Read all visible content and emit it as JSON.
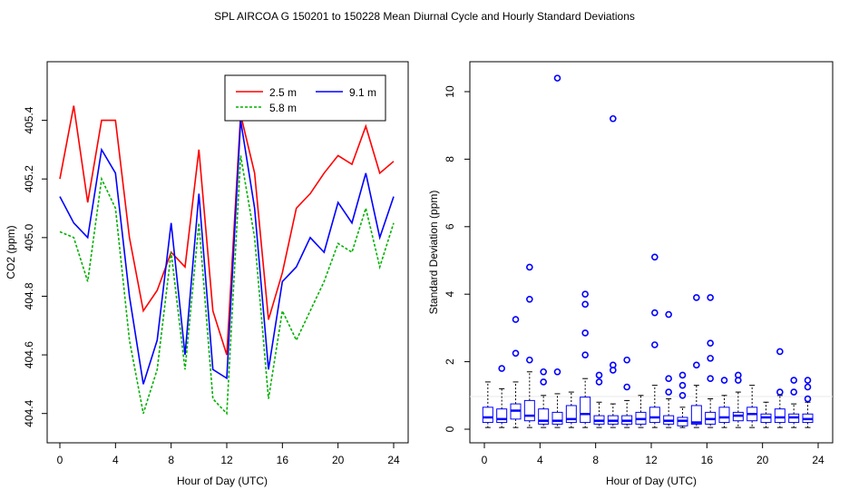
{
  "page": {
    "title": "SPL   AIRCOA G   150201 to 150228   Mean Diurnal Cycle and Hourly Standard Deviations"
  },
  "chart_data": [
    {
      "type": "line",
      "xlabel": "Hour of Day (UTC)",
      "ylabel": "CO2 (ppm)",
      "xlim": [
        0,
        24
      ],
      "ylim": [
        404.3,
        405.6
      ],
      "xticks": [
        "0",
        "4",
        "8",
        "12",
        "16",
        "20",
        "24"
      ],
      "yticks": [
        "404.4",
        "404.6",
        "404.8",
        "405.0",
        "405.2",
        "405.4"
      ],
      "legend_position": "top-right",
      "series": [
        {
          "name": "2.5 m",
          "color": "#ff0000",
          "x": [
            0,
            1,
            2,
            3,
            4,
            5,
            6,
            7,
            8,
            9,
            10,
            11,
            12,
            13,
            14,
            15,
            16,
            17,
            18,
            19,
            20,
            21,
            22,
            23,
            24
          ],
          "y": [
            405.2,
            405.45,
            405.12,
            405.4,
            405.4,
            405.0,
            404.75,
            404.82,
            404.95,
            404.9,
            405.3,
            404.75,
            404.6,
            405.42,
            405.22,
            404.72,
            404.88,
            405.1,
            405.15,
            405.22,
            405.28,
            405.25,
            405.38,
            405.22,
            405.26
          ]
        },
        {
          "name": "9.1 m",
          "color": "#0000ff",
          "x": [
            0,
            1,
            2,
            3,
            4,
            5,
            6,
            7,
            8,
            9,
            10,
            11,
            12,
            13,
            14,
            15,
            16,
            17,
            18,
            19,
            20,
            21,
            22,
            23,
            24
          ],
          "y": [
            405.14,
            405.05,
            405.0,
            405.3,
            405.22,
            404.8,
            404.5,
            404.65,
            405.05,
            404.6,
            405.15,
            404.55,
            404.52,
            405.4,
            405.1,
            404.55,
            404.85,
            404.9,
            405.0,
            404.95,
            405.12,
            405.05,
            405.22,
            405.0,
            405.14
          ]
        },
        {
          "name": "5.8 m",
          "color": "#00b000",
          "x": [
            0,
            1,
            2,
            3,
            4,
            5,
            6,
            7,
            8,
            9,
            10,
            11,
            12,
            13,
            14,
            15,
            16,
            17,
            18,
            19,
            20,
            21,
            22,
            23,
            24
          ],
          "y": [
            405.02,
            405.0,
            404.85,
            405.2,
            405.1,
            404.65,
            404.4,
            404.55,
            404.95,
            404.55,
            405.05,
            404.45,
            404.4,
            405.28,
            405.0,
            404.45,
            404.75,
            404.65,
            404.75,
            404.85,
            404.98,
            404.95,
            405.1,
            404.9,
            405.05
          ]
        }
      ]
    },
    {
      "type": "box",
      "xlabel": "Hour of Day (UTC)",
      "ylabel": "Standard Deviation (ppm)",
      "xlim": [
        0,
        24
      ],
      "ylim": [
        0,
        10.5
      ],
      "xticks": [
        "0",
        "4",
        "8",
        "12",
        "16",
        "20",
        "24"
      ],
      "yticks": [
        "0",
        "2",
        "4",
        "6",
        "8",
        "10"
      ],
      "color": "#0000ff",
      "boxes": [
        {
          "hour": 0.25,
          "min": 0.05,
          "q1": 0.2,
          "median": 0.35,
          "q3": 0.65,
          "max": 1.4
        },
        {
          "hour": 1.25,
          "min": 0.05,
          "q1": 0.2,
          "median": 0.3,
          "q3": 0.6,
          "max": 1.2
        },
        {
          "hour": 2.25,
          "min": 0.05,
          "q1": 0.3,
          "median": 0.55,
          "q3": 0.75,
          "max": 1.4
        },
        {
          "hour": 3.25,
          "min": 0.05,
          "q1": 0.25,
          "median": 0.4,
          "q3": 0.85,
          "max": 1.7
        },
        {
          "hour": 4.25,
          "min": 0.05,
          "q1": 0.15,
          "median": 0.25,
          "q3": 0.6,
          "max": 1.0
        },
        {
          "hour": 5.25,
          "min": 0.05,
          "q1": 0.15,
          "median": 0.25,
          "q3": 0.5,
          "max": 1.05
        },
        {
          "hour": 6.25,
          "min": 0.05,
          "q1": 0.2,
          "median": 0.3,
          "q3": 0.7,
          "max": 1.1
        },
        {
          "hour": 7.25,
          "min": 0.05,
          "q1": 0.2,
          "median": 0.45,
          "q3": 0.95,
          "max": 1.5
        },
        {
          "hour": 8.25,
          "min": 0.05,
          "q1": 0.15,
          "median": 0.25,
          "q3": 0.4,
          "max": 0.8
        },
        {
          "hour": 9.25,
          "min": 0.05,
          "q1": 0.15,
          "median": 0.25,
          "q3": 0.4,
          "max": 0.75
        },
        {
          "hour": 10.25,
          "min": 0.05,
          "q1": 0.15,
          "median": 0.25,
          "q3": 0.4,
          "max": 0.85
        },
        {
          "hour": 11.25,
          "min": 0.05,
          "q1": 0.15,
          "median": 0.3,
          "q3": 0.5,
          "max": 1.0
        },
        {
          "hour": 12.25,
          "min": 0.05,
          "q1": 0.2,
          "median": 0.35,
          "q3": 0.65,
          "max": 1.3
        },
        {
          "hour": 13.25,
          "min": 0.05,
          "q1": 0.15,
          "median": 0.25,
          "q3": 0.4,
          "max": 0.9
        },
        {
          "hour": 14.25,
          "min": 0.05,
          "q1": 0.1,
          "median": 0.25,
          "q3": 0.35,
          "max": 0.65
        },
        {
          "hour": 15.25,
          "min": 0.05,
          "q1": 0.15,
          "median": 0.2,
          "q3": 0.7,
          "max": 1.3
        },
        {
          "hour": 16.25,
          "min": 0.05,
          "q1": 0.15,
          "median": 0.3,
          "q3": 0.5,
          "max": 0.9
        },
        {
          "hour": 17.25,
          "min": 0.05,
          "q1": 0.2,
          "median": 0.35,
          "q3": 0.65,
          "max": 1.0
        },
        {
          "hour": 18.25,
          "min": 0.05,
          "q1": 0.25,
          "median": 0.4,
          "q3": 0.5,
          "max": 1.1
        },
        {
          "hour": 19.25,
          "min": 0.05,
          "q1": 0.25,
          "median": 0.45,
          "q3": 0.65,
          "max": 1.3
        },
        {
          "hour": 20.25,
          "min": 0.05,
          "q1": 0.2,
          "median": 0.35,
          "q3": 0.45,
          "max": 0.8
        },
        {
          "hour": 21.25,
          "min": 0.05,
          "q1": 0.2,
          "median": 0.35,
          "q3": 0.6,
          "max": 1.0
        },
        {
          "hour": 22.25,
          "min": 0.05,
          "q1": 0.2,
          "median": 0.35,
          "q3": 0.45,
          "max": 0.75
        },
        {
          "hour": 23.25,
          "min": 0.05,
          "q1": 0.2,
          "median": 0.3,
          "q3": 0.45,
          "max": 0.8
        }
      ],
      "outliers": [
        {
          "hour": 1.25,
          "value": 1.8
        },
        {
          "hour": 2.25,
          "value": 2.25
        },
        {
          "hour": 2.25,
          "value": 3.25
        },
        {
          "hour": 3.25,
          "value": 2.05
        },
        {
          "hour": 3.25,
          "value": 3.85
        },
        {
          "hour": 3.25,
          "value": 4.8
        },
        {
          "hour": 4.25,
          "value": 1.7
        },
        {
          "hour": 4.25,
          "value": 1.4
        },
        {
          "hour": 5.25,
          "value": 1.7
        },
        {
          "hour": 5.25,
          "value": 10.4
        },
        {
          "hour": 7.25,
          "value": 2.85
        },
        {
          "hour": 7.25,
          "value": 2.2
        },
        {
          "hour": 7.25,
          "value": 3.7
        },
        {
          "hour": 7.25,
          "value": 4.0
        },
        {
          "hour": 8.25,
          "value": 1.6
        },
        {
          "hour": 8.25,
          "value": 1.4
        },
        {
          "hour": 9.25,
          "value": 1.75
        },
        {
          "hour": 9.25,
          "value": 1.9
        },
        {
          "hour": 9.25,
          "value": 9.2
        },
        {
          "hour": 10.25,
          "value": 2.05
        },
        {
          "hour": 10.25,
          "value": 1.25
        },
        {
          "hour": 12.25,
          "value": 2.5
        },
        {
          "hour": 12.25,
          "value": 3.45
        },
        {
          "hour": 12.25,
          "value": 5.1
        },
        {
          "hour": 13.25,
          "value": 1.1
        },
        {
          "hour": 13.25,
          "value": 1.5
        },
        {
          "hour": 13.25,
          "value": 3.4
        },
        {
          "hour": 14.25,
          "value": 1.6
        },
        {
          "hour": 14.25,
          "value": 1.3
        },
        {
          "hour": 14.25,
          "value": 1.0
        },
        {
          "hour": 15.25,
          "value": 1.9
        },
        {
          "hour": 15.25,
          "value": 3.9
        },
        {
          "hour": 16.25,
          "value": 1.5
        },
        {
          "hour": 16.25,
          "value": 2.1
        },
        {
          "hour": 16.25,
          "value": 2.55
        },
        {
          "hour": 16.25,
          "value": 3.9
        },
        {
          "hour": 17.25,
          "value": 1.45
        },
        {
          "hour": 18.25,
          "value": 1.45
        },
        {
          "hour": 18.25,
          "value": 1.6
        },
        {
          "hour": 21.25,
          "value": 1.1
        },
        {
          "hour": 21.25,
          "value": 2.3
        },
        {
          "hour": 22.25,
          "value": 1.1
        },
        {
          "hour": 22.25,
          "value": 1.45
        },
        {
          "hour": 23.25,
          "value": 0.9
        },
        {
          "hour": 23.25,
          "value": 1.25
        },
        {
          "hour": 23.25,
          "value": 1.45
        }
      ]
    }
  ]
}
